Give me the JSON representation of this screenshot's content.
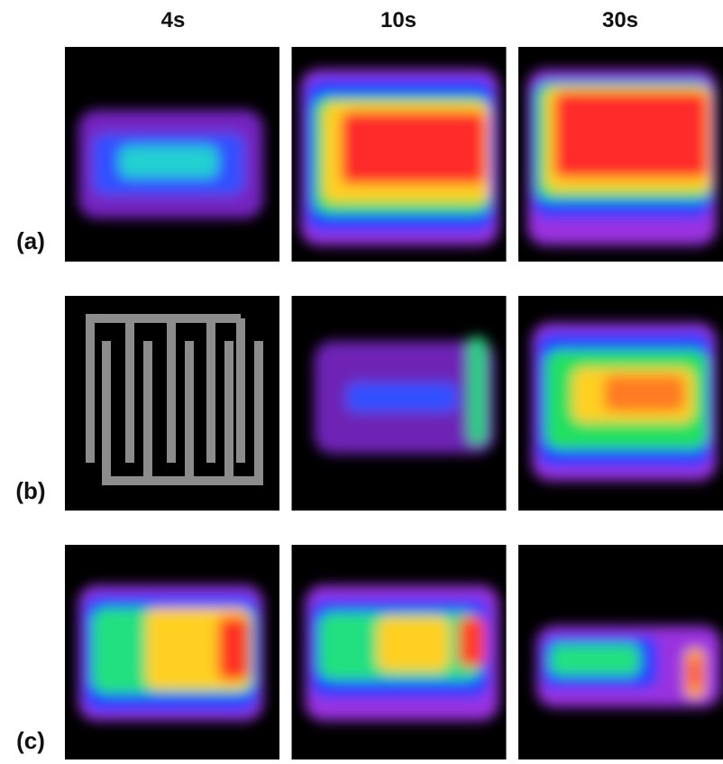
{
  "column_labels": [
    "4s",
    "10s",
    "30s"
  ],
  "row_labels": [
    "(a)",
    "(b)",
    "(c)"
  ]
}
